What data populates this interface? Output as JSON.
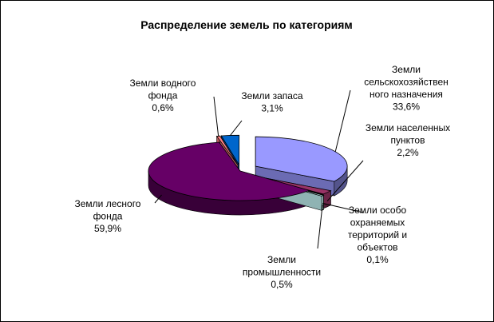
{
  "chart_data": {
    "type": "pie",
    "title": "Распределение земель по категориям",
    "slices": [
      {
        "label": "Земли сельскохозяйственного назначения",
        "label_lines": [
          "Земли",
          "сельскохозяйствен",
          "ного назначения"
        ],
        "percent_text": "33,6%",
        "value": 33.6,
        "color": "#9999ff"
      },
      {
        "label": "Земли населенных пунктов",
        "label_lines": [
          "Земли населенных",
          "пунктов"
        ],
        "percent_text": "2,2%",
        "value": 2.2,
        "color": "#993366"
      },
      {
        "label": "Земли особо охраняемых территорий и объектов",
        "label_lines": [
          "Земли особо",
          "охраняемых",
          "территорий и",
          "объектов"
        ],
        "percent_text": "0,1%",
        "value": 0.1,
        "color": "#ffffcc"
      },
      {
        "label": "Земли промышленности",
        "label_lines": [
          "Земли",
          "промышленности"
        ],
        "percent_text": "0,5%",
        "value": 0.5,
        "color": "#ccffff"
      },
      {
        "label": "Земли лесного фонда",
        "label_lines": [
          "Земли лесного",
          "фонда"
        ],
        "percent_text": "59,9%",
        "value": 59.9,
        "color": "#660066"
      },
      {
        "label": "Земли водного фонда",
        "label_lines": [
          "Земли водного",
          "фонда"
        ],
        "percent_text": "0,6%",
        "value": 0.6,
        "color": "#ff8080"
      },
      {
        "label": "Земли запаса",
        "label_lines": [
          "Земли запаса"
        ],
        "percent_text": "3,1%",
        "value": 3.1,
        "color": "#0066cc"
      }
    ],
    "slice_colors": [
      "#9999ff",
      "#993366",
      "#ffffcc",
      "#ccffff",
      "#660066",
      "#ff8080",
      "#0066cc"
    ]
  }
}
